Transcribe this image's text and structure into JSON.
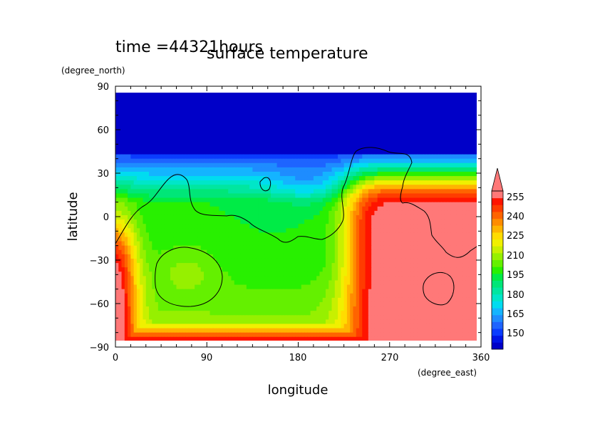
{
  "chart_data": {
    "type": "heatmap",
    "title": "surface temperature",
    "subtitle": "time =44321hours",
    "xlabel": "longitude",
    "ylabel": "latitude",
    "xunits": "(degree_east)",
    "yunits": "(degree_north)",
    "xlim": [
      0,
      360
    ],
    "ylim": [
      -90,
      90
    ],
    "xticks": [
      "0",
      "90",
      "180",
      "270",
      "360"
    ],
    "yticks": [
      "90",
      "60",
      "30",
      "0",
      "−30",
      "−60",
      "−90"
    ],
    "colorbar": {
      "labels": [
        "255",
        "240",
        "225",
        "210",
        "195",
        "180",
        "165",
        "150"
      ],
      "levels": [
        145,
        150,
        155,
        160,
        165,
        170,
        175,
        180,
        185,
        190,
        195,
        200,
        205,
        210,
        215,
        220,
        225,
        230,
        235,
        240,
        245,
        250,
        255,
        260
      ],
      "colors": [
        "#0000c8",
        "#0014e6",
        "#0a3cff",
        "#1e64ff",
        "#1e8cff",
        "#14b4ff",
        "#00dcf0",
        "#00e6c8",
        "#00e6a0",
        "#00e678",
        "#00eb46",
        "#28f000",
        "#64f000",
        "#96f000",
        "#c8f000",
        "#f0f000",
        "#ffdc00",
        "#ffb400",
        "#ff8c00",
        "#ff6400",
        "#ff3c00",
        "#ff1400",
        "#ff7878"
      ],
      "extend": "max"
    },
    "values_description": "Temperature field in K; warm (≥255) over 240–360°E, cold (≤150) north of 40°N"
  }
}
